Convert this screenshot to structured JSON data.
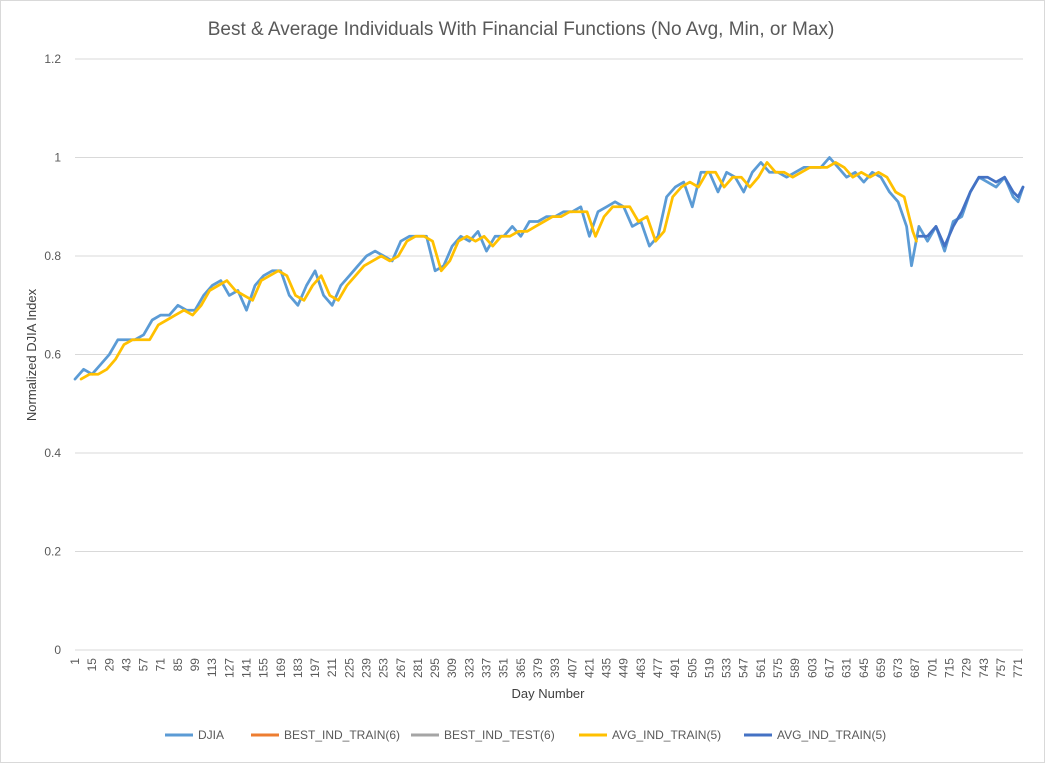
{
  "chart_data": {
    "type": "line",
    "title": "Best & Average Individuals With Financial Functions (No Avg, Min, or Max)",
    "xlabel": "Day Number",
    "ylabel": "Normalized DJIA Index",
    "ylim": [
      0,
      1.2
    ],
    "y_ticks": [
      "0",
      "0.2",
      "0.4",
      "0.6",
      "0.8",
      "1",
      "1.2"
    ],
    "x_range": [
      1,
      775
    ],
    "x_tick_start": 1,
    "x_tick_step": 14,
    "x_tick_labels": [
      "1",
      "15",
      "29",
      "43",
      "57",
      "71",
      "85",
      "99",
      "113",
      "127",
      "141",
      "155",
      "169",
      "183",
      "197",
      "211",
      "225",
      "239",
      "253",
      "267",
      "281",
      "295",
      "309",
      "323",
      "337",
      "351",
      "365",
      "379",
      "393",
      "407",
      "421",
      "435",
      "449",
      "463",
      "477",
      "491",
      "505",
      "519",
      "533",
      "547",
      "561",
      "575",
      "589",
      "603",
      "617",
      "631",
      "645",
      "659",
      "673",
      "687",
      "701",
      "715",
      "729",
      "743",
      "757",
      "771"
    ],
    "grid": "horizontal",
    "legend_position": "bottom",
    "series": [
      {
        "name": "DJIA",
        "color": "#5b9bd5",
        "x": [
          1,
          8,
          15,
          22,
          29,
          36,
          43,
          50,
          57,
          64,
          71,
          78,
          85,
          92,
          99,
          106,
          113,
          120,
          127,
          134,
          141,
          148,
          155,
          162,
          169,
          176,
          183,
          190,
          197,
          204,
          211,
          218,
          225,
          232,
          239,
          246,
          253,
          260,
          267,
          274,
          281,
          288,
          295,
          302,
          309,
          316,
          323,
          330,
          337,
          344,
          351,
          358,
          365,
          372,
          379,
          386,
          393,
          400,
          407,
          414,
          421,
          428,
          435,
          442,
          449,
          456,
          463,
          470,
          477,
          484,
          491,
          498,
          505,
          512,
          519,
          526,
          533,
          540,
          547,
          554,
          561,
          568,
          575,
          582,
          589,
          596,
          603,
          610,
          617,
          624,
          631,
          638,
          645,
          652,
          659,
          666,
          673,
          680,
          684,
          690,
          697,
          704,
          711,
          718,
          725,
          732,
          739,
          746,
          753,
          760,
          767,
          771,
          775
        ],
        "y": [
          0.55,
          0.57,
          0.56,
          0.58,
          0.6,
          0.63,
          0.63,
          0.63,
          0.64,
          0.67,
          0.68,
          0.68,
          0.7,
          0.69,
          0.69,
          0.72,
          0.74,
          0.75,
          0.72,
          0.73,
          0.69,
          0.74,
          0.76,
          0.77,
          0.77,
          0.72,
          0.7,
          0.74,
          0.77,
          0.72,
          0.7,
          0.74,
          0.76,
          0.78,
          0.8,
          0.81,
          0.8,
          0.79,
          0.83,
          0.84,
          0.84,
          0.84,
          0.77,
          0.78,
          0.82,
          0.84,
          0.83,
          0.85,
          0.81,
          0.84,
          0.84,
          0.86,
          0.84,
          0.87,
          0.87,
          0.88,
          0.88,
          0.89,
          0.89,
          0.9,
          0.84,
          0.89,
          0.9,
          0.91,
          0.9,
          0.86,
          0.87,
          0.82,
          0.84,
          0.92,
          0.94,
          0.95,
          0.9,
          0.97,
          0.97,
          0.93,
          0.97,
          0.96,
          0.93,
          0.97,
          0.99,
          0.97,
          0.97,
          0.96,
          0.97,
          0.98,
          0.98,
          0.98,
          1.0,
          0.98,
          0.96,
          0.97,
          0.95,
          0.97,
          0.96,
          0.93,
          0.91,
          0.86,
          0.78,
          0.86,
          0.83,
          0.86,
          0.81,
          0.87,
          0.88,
          0.93,
          0.96,
          0.95,
          0.94,
          0.96,
          0.92,
          0.91,
          0.94
        ]
      },
      {
        "name": "BEST_IND_TRAIN(6)",
        "color": "#ed7d31",
        "x": [],
        "y": []
      },
      {
        "name": "BEST_IND_TEST(6)",
        "color": "#a5a5a5",
        "x": [],
        "y": []
      },
      {
        "name": "AVG_IND_TRAIN(5)",
        "color": "#ffc000",
        "x": [
          6,
          13,
          20,
          27,
          34,
          41,
          48,
          55,
          62,
          69,
          76,
          83,
          90,
          97,
          104,
          111,
          118,
          125,
          132,
          139,
          146,
          153,
          160,
          167,
          174,
          181,
          188,
          195,
          202,
          209,
          216,
          223,
          230,
          237,
          244,
          251,
          258,
          265,
          272,
          279,
          286,
          293,
          300,
          307,
          314,
          321,
          328,
          335,
          342,
          349,
          356,
          363,
          370,
          377,
          384,
          391,
          398,
          405,
          412,
          419,
          426,
          433,
          440,
          447,
          454,
          461,
          468,
          475,
          482,
          489,
          496,
          503,
          510,
          517,
          524,
          531,
          538,
          545,
          552,
          559,
          566,
          573,
          580,
          587,
          594,
          601,
          608,
          615,
          622,
          629,
          636,
          643,
          650,
          657,
          664,
          671,
          678,
          685,
          688
        ],
        "y": [
          0.55,
          0.56,
          0.56,
          0.57,
          0.59,
          0.62,
          0.63,
          0.63,
          0.63,
          0.66,
          0.67,
          0.68,
          0.69,
          0.68,
          0.7,
          0.73,
          0.74,
          0.75,
          0.73,
          0.72,
          0.71,
          0.75,
          0.76,
          0.77,
          0.76,
          0.72,
          0.71,
          0.74,
          0.76,
          0.72,
          0.71,
          0.74,
          0.76,
          0.78,
          0.79,
          0.8,
          0.79,
          0.8,
          0.83,
          0.84,
          0.84,
          0.83,
          0.77,
          0.79,
          0.83,
          0.84,
          0.83,
          0.84,
          0.82,
          0.84,
          0.84,
          0.85,
          0.85,
          0.86,
          0.87,
          0.88,
          0.88,
          0.89,
          0.89,
          0.89,
          0.84,
          0.88,
          0.9,
          0.9,
          0.9,
          0.87,
          0.88,
          0.83,
          0.85,
          0.92,
          0.94,
          0.95,
          0.94,
          0.97,
          0.97,
          0.94,
          0.96,
          0.96,
          0.94,
          0.96,
          0.99,
          0.97,
          0.97,
          0.96,
          0.97,
          0.98,
          0.98,
          0.98,
          0.99,
          0.98,
          0.96,
          0.97,
          0.96,
          0.97,
          0.96,
          0.93,
          0.92,
          0.85,
          0.83
        ]
      },
      {
        "name": "AVG_IND_TRAIN(5)",
        "color": "#4472c4",
        "x": [
          690,
          697,
          704,
          711,
          718,
          725,
          732,
          739,
          746,
          753,
          760,
          767,
          771,
          775
        ],
        "y": [
          0.84,
          0.84,
          0.86,
          0.82,
          0.86,
          0.89,
          0.93,
          0.96,
          0.96,
          0.95,
          0.96,
          0.93,
          0.92,
          0.94
        ]
      }
    ]
  }
}
